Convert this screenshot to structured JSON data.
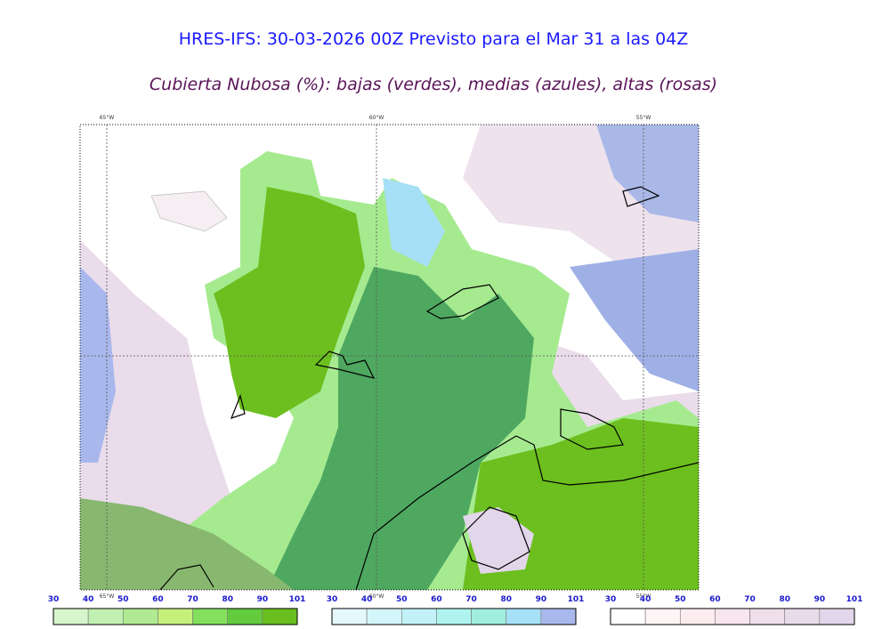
{
  "header": {
    "title": "HRES-IFS: 30-03-2026 00Z Previsto para el Mar 31 a las 04Z",
    "subtitle": "Cubierta Nubosa (%): bajas (verdes), medias (azules), altas (rosas)"
  },
  "map": {
    "lon_labels": [
      "65°W",
      "60°W",
      "55°W"
    ]
  },
  "legends": [
    {
      "labels": [
        30,
        40,
        50,
        60,
        70,
        80,
        90,
        101
      ],
      "colors": [
        "#d6f5cc",
        "#c2f0b2",
        "#b0ea92",
        "#c6f07c",
        "#84e05c",
        "#62cc3e",
        "#6abf1e"
      ]
    },
    {
      "labels": [
        30,
        40,
        50,
        60,
        70,
        80,
        90,
        101
      ],
      "colors": [
        "#e4f8fc",
        "#d4f6fa",
        "#c2f2f8",
        "#b0f4f0",
        "#a2eede",
        "#a6e0f6",
        "#a8b8ec"
      ]
    },
    {
      "labels": [
        30,
        40,
        50,
        60,
        70,
        80,
        90,
        101
      ],
      "colors": [
        "#ffffff",
        "#fdf4f6",
        "#fbecf0",
        "#f7e6ee",
        "#efdfea",
        "#e8dcea",
        "#e2d6ea"
      ]
    }
  ]
}
